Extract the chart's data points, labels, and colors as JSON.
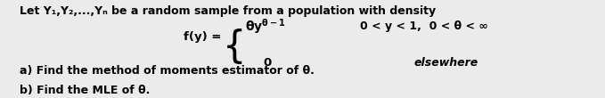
{
  "background_color": "#ebebeb",
  "text_color": "#000000",
  "title_line": "Let Y₁,Y₂,...,Yₙ be a random sample from a population with density",
  "fy_label": "f(y) =",
  "case1_cond": "0 < y < 1,  0 < θ < ∞",
  "case2_expr": "0",
  "case2_cond": "elsewhere",
  "part_a": "a) Find the method of moments estimator of θ.",
  "part_b": "b) Find the MLE of θ."
}
